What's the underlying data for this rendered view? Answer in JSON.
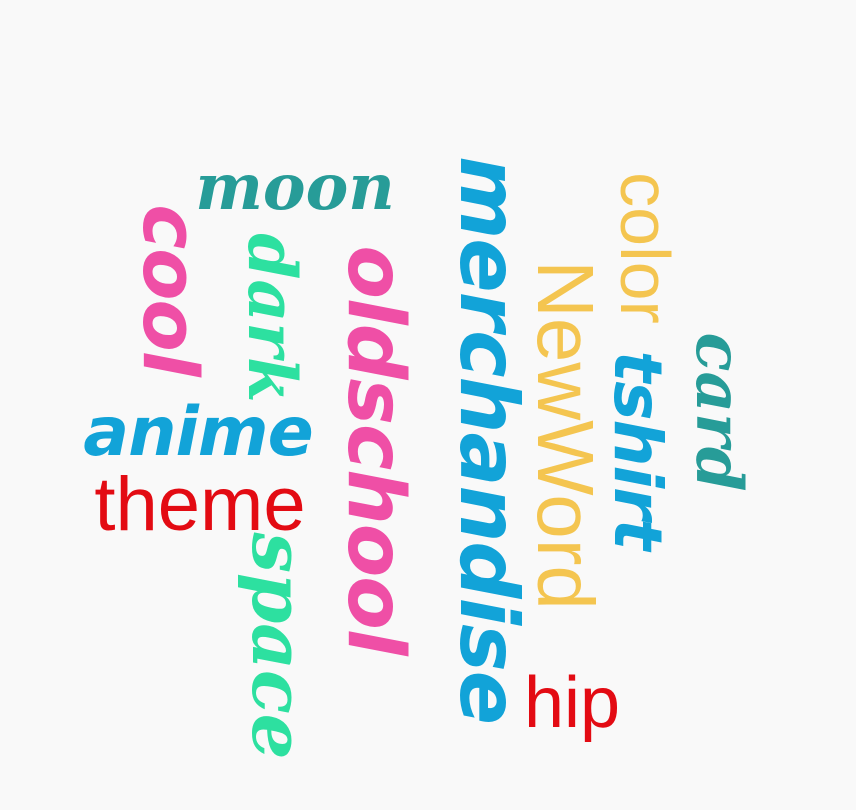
{
  "cloud": {
    "words": {
      "moon": {
        "text": "moon",
        "color": "#279c98"
      },
      "cool": {
        "text": "cool",
        "color": "#ef4fa6"
      },
      "dark": {
        "text": "dark",
        "color": "#2de0a0"
      },
      "oldschool": {
        "text": "oldschool",
        "color": "#ef4fa6"
      },
      "anime": {
        "text": "anime",
        "color": "#12a3d8"
      },
      "theme": {
        "text": "theme",
        "color": "#e30b13"
      },
      "space": {
        "text": "space",
        "color": "#2de0a0"
      },
      "merchandise": {
        "text": "merchandise",
        "color": "#12a3d8"
      },
      "newword": {
        "text": "NewWord",
        "color": "#f4c550"
      },
      "color": {
        "text": "color",
        "color": "#f4c550"
      },
      "tshirt": {
        "text": "tshirt",
        "color": "#12a3d8"
      },
      "card": {
        "text": "card",
        "color": "#279c98"
      },
      "hip": {
        "text": "hip",
        "color": "#e30b13"
      }
    }
  }
}
